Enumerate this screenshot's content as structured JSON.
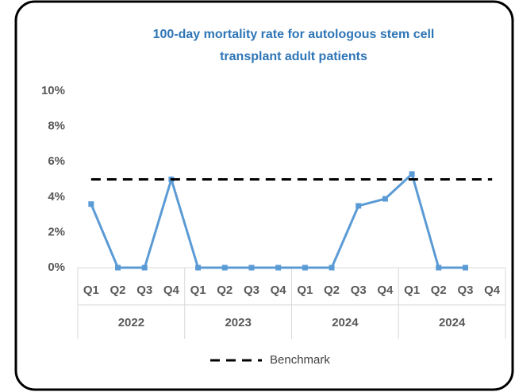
{
  "chart_data": {
    "type": "line",
    "title": [
      "100-day mortality rate for autologous stem cell",
      "transplant adult patients"
    ],
    "categories": [
      "Q1",
      "Q2",
      "Q3",
      "Q4",
      "Q1",
      "Q2",
      "Q3",
      "Q4",
      "Q1",
      "Q2",
      "Q3",
      "Q4",
      "Q1",
      "Q2",
      "Q3",
      "Q4"
    ],
    "groups": [
      "2022",
      "2023",
      "2024",
      "2024"
    ],
    "series": [
      {
        "color": "#5b9bd5",
        "values": [
          3.6,
          0,
          0,
          5.0,
          0,
          0,
          0,
          0,
          0,
          0,
          3.5,
          3.9,
          5.3,
          0,
          0,
          null
        ]
      },
      {
        "name": "Benchmark",
        "color": "#000000",
        "dashed": true,
        "values": [
          5,
          5,
          5,
          5,
          5,
          5,
          5,
          5,
          5,
          5,
          5,
          5,
          5,
          5,
          5,
          5
        ]
      }
    ],
    "ylim": [
      0,
      10
    ],
    "yticks": [
      {
        "value": 0,
        "label": "0%"
      },
      {
        "value": 2,
        "label": "2%"
      },
      {
        "value": 4,
        "label": "4%"
      },
      {
        "value": 6,
        "label": "6%"
      },
      {
        "value": 8,
        "label": "8%"
      },
      {
        "value": 10,
        "label": "10%"
      }
    ],
    "legend": "bottom"
  }
}
